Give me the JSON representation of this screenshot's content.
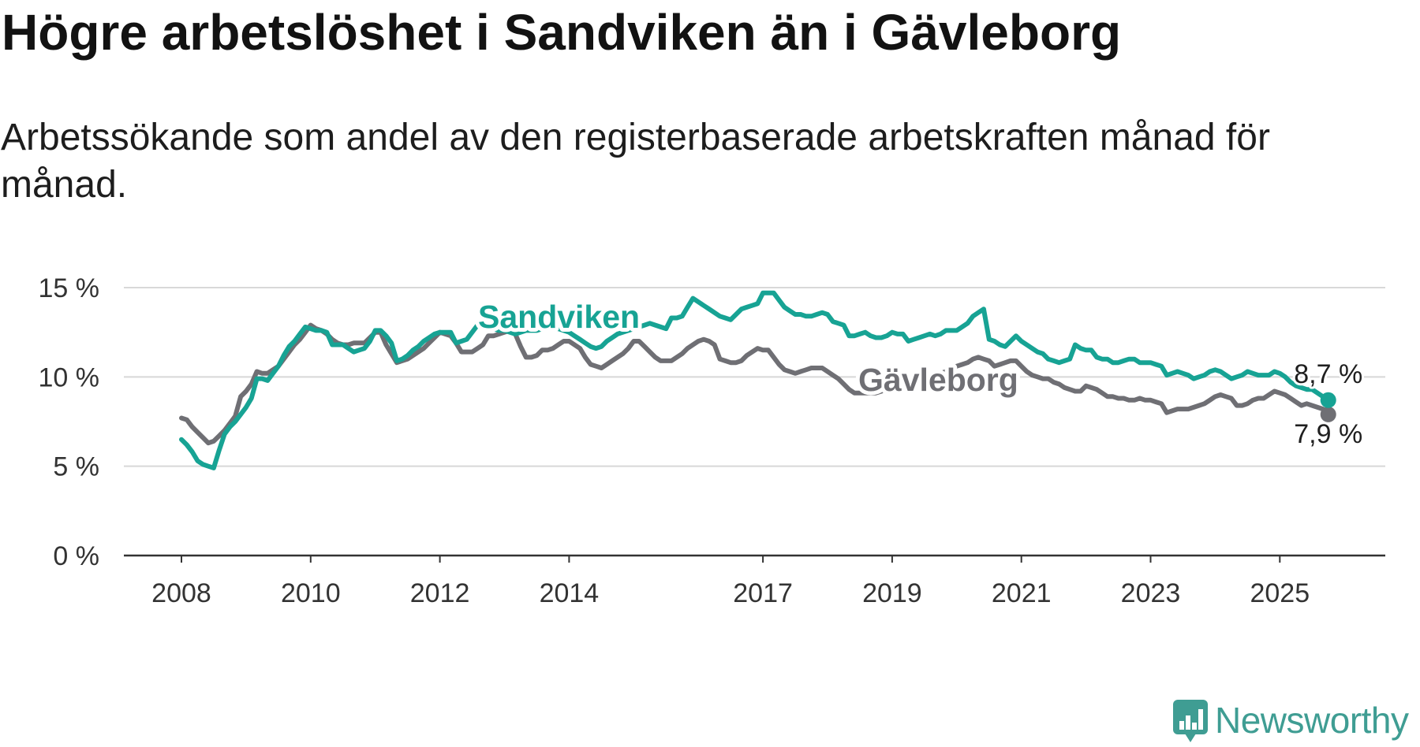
{
  "chart_data": {
    "type": "line",
    "title": "Högre arbetslöshet i Sandviken än i Gävleborg",
    "subtitle": "Arbetssökande som andel av den registerbaserade arbetskraften månad för månad.",
    "ylim": [
      0,
      15
    ],
    "grid": true,
    "x_start": {
      "year": 2008,
      "month": 1
    },
    "months_per_point": 1,
    "y_ticks": {
      "values": [
        0,
        5,
        10,
        15
      ],
      "labels": [
        "0 %",
        "5 %",
        "10 %",
        "15 %"
      ]
    },
    "x_ticks": {
      "values": [
        2008,
        2010,
        2012,
        2014,
        2017,
        2019,
        2021,
        2023,
        2025
      ],
      "labels": [
        "2008",
        "2010",
        "2012",
        "2014",
        "2017",
        "2019",
        "2021",
        "2023",
        "2025"
      ]
    },
    "series": [
      {
        "name": "Sandviken",
        "color": "#17a394",
        "end_label": "8,7 %",
        "values": [
          6.5,
          6.2,
          5.8,
          5.3,
          5.1,
          5.0,
          4.9,
          5.9,
          6.8,
          7.2,
          7.5,
          7.9,
          8.3,
          8.8,
          9.9,
          9.9,
          9.8,
          10.2,
          10.6,
          11.2,
          11.7,
          12.0,
          12.4,
          12.8,
          12.7,
          12.6,
          12.6,
          12.5,
          11.8,
          11.8,
          11.8,
          11.6,
          11.4,
          11.5,
          11.6,
          12.0,
          12.6,
          12.6,
          12.3,
          11.9,
          10.9,
          11.0,
          11.2,
          11.5,
          11.7,
          12.0,
          12.2,
          12.4,
          12.5,
          12.5,
          12.5,
          11.9,
          12.0,
          12.1,
          12.5,
          12.9,
          12.9,
          12.8,
          12.7,
          12.6,
          12.6,
          12.5,
          12.4,
          12.5,
          12.6,
          12.6,
          12.6,
          12.7,
          12.7,
          12.7,
          12.7,
          12.6,
          12.5,
          12.3,
          12.1,
          11.9,
          11.7,
          11.6,
          11.7,
          12.0,
          12.2,
          12.4,
          12.5,
          12.6,
          12.7,
          12.8,
          12.9,
          13.0,
          12.9,
          12.8,
          12.7,
          13.3,
          13.3,
          13.4,
          13.9,
          14.4,
          14.2,
          14.0,
          13.8,
          13.6,
          13.4,
          13.3,
          13.2,
          13.5,
          13.8,
          13.9,
          14.0,
          14.1,
          14.7,
          14.7,
          14.7,
          14.3,
          13.9,
          13.7,
          13.5,
          13.5,
          13.4,
          13.4,
          13.5,
          13.6,
          13.5,
          13.1,
          13.0,
          12.9,
          12.3,
          12.3,
          12.4,
          12.5,
          12.3,
          12.2,
          12.2,
          12.3,
          12.5,
          12.4,
          12.4,
          12.0,
          12.1,
          12.2,
          12.3,
          12.4,
          12.3,
          12.4,
          12.6,
          12.6,
          12.6,
          12.8,
          13.0,
          13.4,
          13.6,
          13.8,
          12.1,
          12.0,
          11.8,
          11.7,
          12.0,
          12.3,
          12.0,
          11.8,
          11.6,
          11.4,
          11.3,
          11.0,
          10.9,
          10.8,
          10.9,
          11.0,
          11.8,
          11.6,
          11.5,
          11.5,
          11.1,
          11.0,
          11.0,
          10.8,
          10.8,
          10.9,
          11.0,
          11.0,
          10.8,
          10.8,
          10.8,
          10.7,
          10.6,
          10.1,
          10.2,
          10.3,
          10.2,
          10.1,
          9.9,
          10.0,
          10.1,
          10.3,
          10.4,
          10.3,
          10.1,
          9.9,
          10.0,
          10.1,
          10.3,
          10.2,
          10.1,
          10.1,
          10.1,
          10.3,
          10.2,
          10.0,
          9.7,
          9.5,
          9.4,
          9.3,
          9.3,
          9.1,
          8.9,
          8.7
        ]
      },
      {
        "name": "Gävleborg",
        "color": "#6f6f74",
        "end_label": "7,9 %",
        "values": [
          7.7,
          7.6,
          7.2,
          6.9,
          6.6,
          6.3,
          6.4,
          6.7,
          7.0,
          7.4,
          7.8,
          8.9,
          9.2,
          9.6,
          10.3,
          10.2,
          10.2,
          10.4,
          10.6,
          11.0,
          11.4,
          11.8,
          12.1,
          12.5,
          12.9,
          12.7,
          12.6,
          12.4,
          12.1,
          11.9,
          11.8,
          11.8,
          11.9,
          11.9,
          11.9,
          12.2,
          12.5,
          12.5,
          11.8,
          11.3,
          10.8,
          10.9,
          11.0,
          11.2,
          11.4,
          11.6,
          11.9,
          12.2,
          12.5,
          12.4,
          12.3,
          11.9,
          11.4,
          11.4,
          11.4,
          11.6,
          11.8,
          12.3,
          12.3,
          12.4,
          12.5,
          12.6,
          12.4,
          11.7,
          11.1,
          11.1,
          11.2,
          11.5,
          11.5,
          11.6,
          11.8,
          12.0,
          12.0,
          11.8,
          11.6,
          11.1,
          10.7,
          10.6,
          10.5,
          10.7,
          10.9,
          11.1,
          11.3,
          11.6,
          12.0,
          12.0,
          11.7,
          11.4,
          11.1,
          10.9,
          10.9,
          10.9,
          11.1,
          11.3,
          11.6,
          11.8,
          12.0,
          12.1,
          12.0,
          11.8,
          11.0,
          10.9,
          10.8,
          10.8,
          10.9,
          11.2,
          11.4,
          11.6,
          11.5,
          11.5,
          11.1,
          10.7,
          10.4,
          10.3,
          10.2,
          10.3,
          10.4,
          10.5,
          10.5,
          10.5,
          10.3,
          10.1,
          9.9,
          9.6,
          9.3,
          9.1,
          9.1,
          9.1,
          9.1,
          9.1,
          9.2,
          9.3,
          9.3,
          9.4,
          9.5,
          9.6,
          9.7,
          9.7,
          9.8,
          10.0,
          10.1,
          10.2,
          10.3,
          10.4,
          10.6,
          10.7,
          10.8,
          11.0,
          11.1,
          11.0,
          10.9,
          10.6,
          10.7,
          10.8,
          10.9,
          10.9,
          10.6,
          10.3,
          10.1,
          10.0,
          9.9,
          9.9,
          9.7,
          9.6,
          9.4,
          9.3,
          9.2,
          9.2,
          9.5,
          9.4,
          9.3,
          9.1,
          8.9,
          8.9,
          8.8,
          8.8,
          8.7,
          8.7,
          8.8,
          8.7,
          8.7,
          8.6,
          8.5,
          8.0,
          8.1,
          8.2,
          8.2,
          8.2,
          8.3,
          8.4,
          8.5,
          8.7,
          8.9,
          9.0,
          8.9,
          8.8,
          8.4,
          8.4,
          8.5,
          8.7,
          8.8,
          8.8,
          9.0,
          9.2,
          9.1,
          9.0,
          8.8,
          8.6,
          8.4,
          8.5,
          8.4,
          8.3,
          8.2,
          7.9
        ]
      }
    ]
  },
  "footer": {
    "brand": "Newsworthy",
    "brand_color": "#3f9d93",
    "icon": "newsworthy-logo-icon"
  }
}
